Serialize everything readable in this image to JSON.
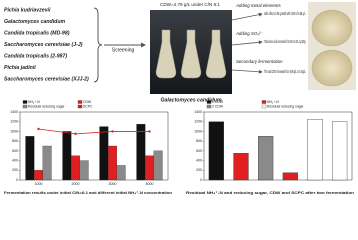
{
  "strains": [
    "Pichia kudriavzevii",
    "Galactomyces candidum",
    "Candida tropicalis (MD-98)",
    "Saccharomyces cerevisiae (J-J)",
    "Candida tropicalis (2-987)",
    "Pichia jadinii",
    "Saccharomyces cerevisiae (XJJ-2)"
  ],
  "screening_label": "Screening",
  "condition": "CDW=4.79 g/L under C/N 6:1",
  "photo_caption": "Galactomyces candidum",
  "branches": [
    {
      "action": "Adding metal elements",
      "result": "Little effect on the growth with CDW of 6.88 g/L."
    },
    {
      "action": "Adding SO₄²⁻",
      "result": "Total amino acids increased from 38.6 to 53.2 g/100g."
    },
    {
      "action": "Secondary fermentation",
      "result": "The total CDW increased from 6.88 g/L to 9.24g/L."
    }
  ],
  "chart_data": [
    {
      "type": "grouped-bar",
      "caption": "Fermentation results under initial C/N=6:1 and different initial NH₄⁺-N concentration",
      "categories": [
        "1000",
        "2000",
        "3000",
        "4000"
      ],
      "series": [
        {
          "name": "NH₄⁺-N",
          "color": "#111111",
          "values": [
            900,
            1000,
            1100,
            1150
          ]
        },
        {
          "name": "CDW",
          "color": "#e02020",
          "values": [
            200,
            500,
            700,
            500
          ]
        },
        {
          "name": "Residual reducing sugar",
          "color": "#8a8a8a",
          "values": [
            700,
            400,
            300,
            600
          ]
        },
        {
          "name": "SCPC",
          "color": "#e02020",
          "mark": "line",
          "values": [
            1050,
            950,
            1000,
            1000
          ]
        }
      ],
      "ylim": [
        0,
        1400
      ],
      "yticks": [
        0,
        200,
        400,
        600,
        800,
        1000,
        1200,
        1400
      ]
    },
    {
      "type": "bar",
      "caption": "Residual NH₄⁺-N and reducing sugar, CDW and SCPC after two fermentation",
      "categories": [
        null,
        null,
        null,
        null,
        null,
        null
      ],
      "values": [
        1200,
        550,
        900,
        150,
        1250,
        1200
      ],
      "colors": [
        "#111111",
        "#e02020",
        "#8a8a8a",
        "#e02020",
        "#ffffff",
        "#ffffff"
      ],
      "legend": [
        {
          "name": "1 CDW",
          "color": "#111111"
        },
        {
          "name": "NH₄⁺-N",
          "color": "#e02020"
        },
        {
          "name": "2 CDW",
          "color": "#8a8a8a"
        },
        {
          "name": "Residual reducing sugar",
          "color": "#ffffff"
        }
      ],
      "ylim": [
        0,
        1400
      ],
      "yticks": [
        0,
        200,
        400,
        600,
        800,
        1000,
        1200,
        1400
      ]
    }
  ]
}
